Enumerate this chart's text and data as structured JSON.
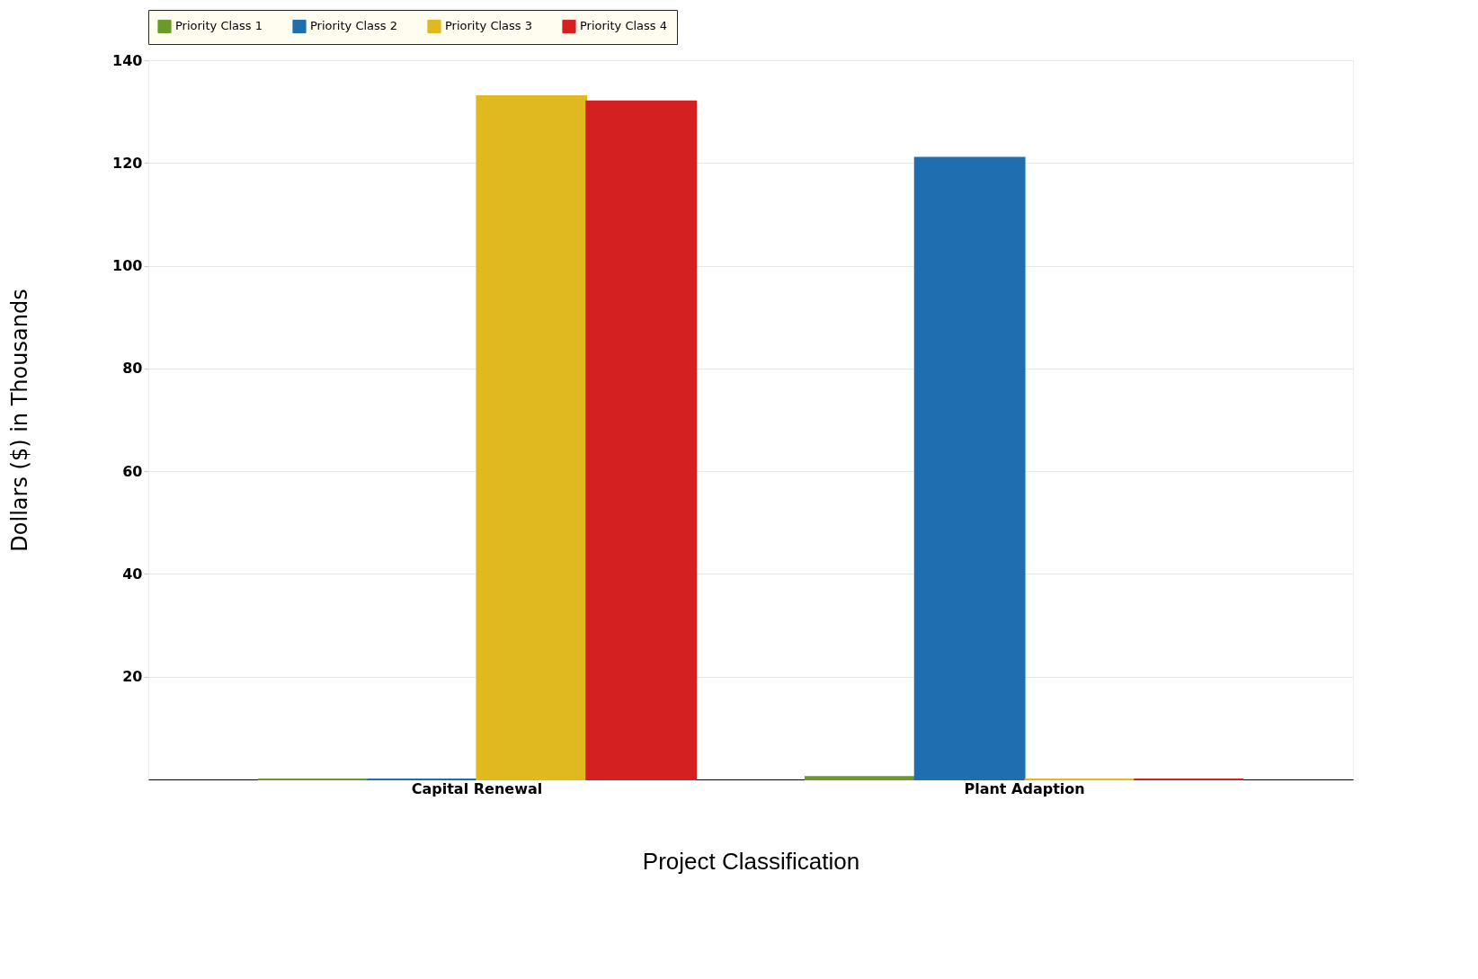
{
  "chart_data": {
    "type": "bar",
    "xlabel": "Project Classification",
    "ylabel": "Dollars ($) in Thousands",
    "categories": [
      "Capital Renewal",
      "Plant Adaption"
    ],
    "series": [
      {
        "name": "Priority Class 1",
        "color": "#6a9a2a",
        "values": [
          0,
          0.5
        ]
      },
      {
        "name": "Priority Class 2",
        "color": "#1f6fb0",
        "values": [
          0,
          121
        ]
      },
      {
        "name": "Priority Class 3",
        "color": "#e0b820",
        "values": [
          133,
          0
        ]
      },
      {
        "name": "Priority Class 4",
        "color": "#d42020",
        "values": [
          132,
          0
        ]
      }
    ],
    "ylim": [
      0,
      140
    ],
    "yticks": [
      20,
      40,
      60,
      80,
      100,
      120,
      140
    ],
    "grid": "y",
    "legend": "top"
  }
}
